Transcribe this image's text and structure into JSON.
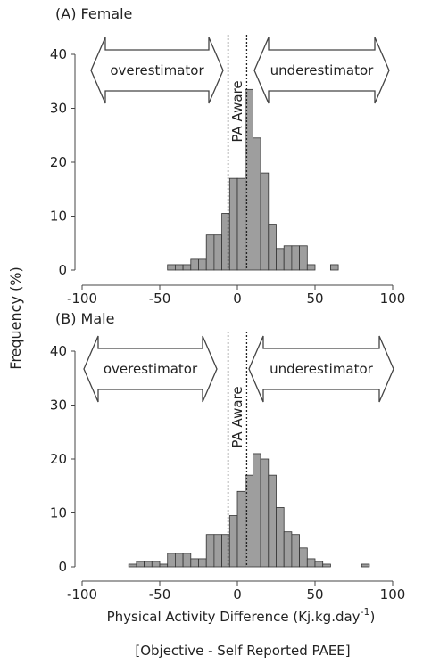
{
  "ylabel": "Frequency (%)",
  "xlabel_main": "Physical Activity Difference (Kj.kg.day",
  "xlabel_sup": "-1",
  "xlabel_paren": ")",
  "xsublabel": "[Objective - Self Reported PAEE]",
  "chart_data": [
    {
      "type": "bar",
      "title": "(A) Female",
      "left_arrow": "overestimator",
      "right_arrow": "underestimator",
      "aware_label": "PA Aware",
      "aware_range": [
        -6,
        6
      ],
      "bin_width": 5,
      "xlim": [
        -100,
        100
      ],
      "ylim": [
        0,
        40
      ],
      "xticks": [
        -100,
        -50,
        0,
        50,
        100
      ],
      "yticks": [
        0,
        10,
        20,
        30,
        40
      ],
      "bins": [
        {
          "x0": -45,
          "value": 1
        },
        {
          "x0": -40,
          "value": 1
        },
        {
          "x0": -35,
          "value": 1
        },
        {
          "x0": -30,
          "value": 2
        },
        {
          "x0": -25,
          "value": 2
        },
        {
          "x0": -20,
          "value": 6.5
        },
        {
          "x0": -15,
          "value": 6.5
        },
        {
          "x0": -10,
          "value": 10.5
        },
        {
          "x0": -5,
          "value": 17
        },
        {
          "x0": 0,
          "value": 17
        },
        {
          "x0": 5,
          "value": 33.5
        },
        {
          "x0": 10,
          "value": 24.5
        },
        {
          "x0": 15,
          "value": 18
        },
        {
          "x0": 20,
          "value": 8.5
        },
        {
          "x0": 25,
          "value": 4
        },
        {
          "x0": 30,
          "value": 4.5
        },
        {
          "x0": 35,
          "value": 4.5
        },
        {
          "x0": 40,
          "value": 4.5
        },
        {
          "x0": 45,
          "value": 1
        },
        {
          "x0": 60,
          "value": 1
        }
      ]
    },
    {
      "type": "bar",
      "title": "(B) Male",
      "left_arrow": "overestimator",
      "right_arrow": "underestimator",
      "aware_label": "PA Aware",
      "aware_range": [
        -6,
        6
      ],
      "bin_width": 5,
      "xlim": [
        -100,
        100
      ],
      "ylim": [
        0,
        40
      ],
      "xticks": [
        -100,
        -50,
        0,
        50,
        100
      ],
      "yticks": [
        0,
        10,
        20,
        30,
        40
      ],
      "bins": [
        {
          "x0": -70,
          "value": 0.5
        },
        {
          "x0": -65,
          "value": 1
        },
        {
          "x0": -60,
          "value": 1
        },
        {
          "x0": -55,
          "value": 1
        },
        {
          "x0": -50,
          "value": 0.5
        },
        {
          "x0": -45,
          "value": 2.5
        },
        {
          "x0": -40,
          "value": 2.5
        },
        {
          "x0": -35,
          "value": 2.5
        },
        {
          "x0": -30,
          "value": 1.5
        },
        {
          "x0": -25,
          "value": 1.5
        },
        {
          "x0": -20,
          "value": 6
        },
        {
          "x0": -15,
          "value": 6
        },
        {
          "x0": -10,
          "value": 6
        },
        {
          "x0": -5,
          "value": 9.5
        },
        {
          "x0": 0,
          "value": 14
        },
        {
          "x0": 5,
          "value": 17
        },
        {
          "x0": 10,
          "value": 21
        },
        {
          "x0": 15,
          "value": 20
        },
        {
          "x0": 20,
          "value": 17
        },
        {
          "x0": 25,
          "value": 11
        },
        {
          "x0": 30,
          "value": 6.5
        },
        {
          "x0": 35,
          "value": 6
        },
        {
          "x0": 40,
          "value": 3.5
        },
        {
          "x0": 45,
          "value": 1.5
        },
        {
          "x0": 50,
          "value": 1
        },
        {
          "x0": 55,
          "value": 0.5
        },
        {
          "x0": 80,
          "value": 0.5
        }
      ]
    }
  ]
}
